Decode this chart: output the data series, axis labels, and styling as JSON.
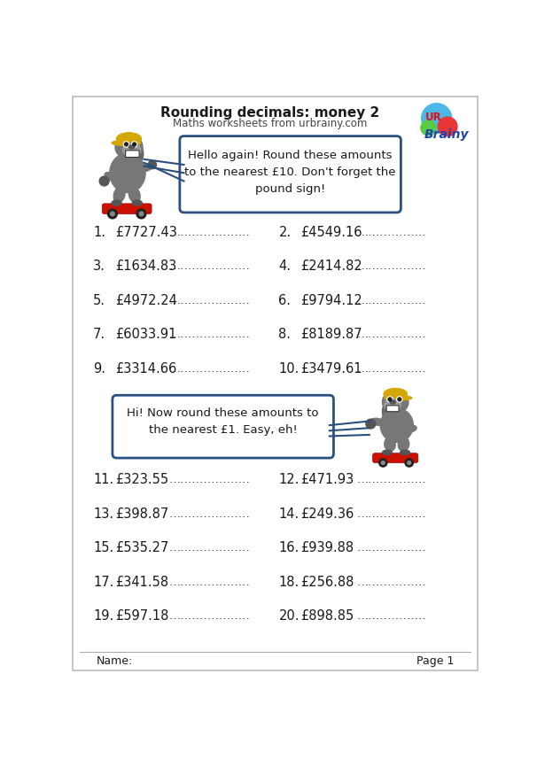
{
  "title": "Rounding decimals: money 2",
  "subtitle": "Maths worksheets from urbrainy.com",
  "background_color": "#ffffff",
  "section1_bubble": "Hello again! Round these amounts\nto the nearest £10. Don't forget the\npound sign!",
  "section2_bubble": "Hi! Now round these amounts to\nthe nearest £1. Easy, eh!",
  "q1_left": [
    {
      "num": "1.",
      "val": "£7727.43"
    },
    {
      "num": "3.",
      "val": "£1634.83"
    },
    {
      "num": "5.",
      "val": "£4972.24"
    },
    {
      "num": "7.",
      "val": "£6033.91"
    },
    {
      "num": "9.",
      "val": "£3314.66"
    }
  ],
  "q1_right": [
    {
      "num": "2.",
      "val": "£4549.16"
    },
    {
      "num": "4.",
      "val": "£2414.82"
    },
    {
      "num": "6.",
      "val": "£9794.12"
    },
    {
      "num": "8.",
      "val": "£8189.87"
    },
    {
      "num": "10.",
      "val": "£3479.61"
    }
  ],
  "q2_left": [
    {
      "num": "11.",
      "val": "£323.55"
    },
    {
      "num": "13.",
      "val": "£398.87"
    },
    {
      "num": "15.",
      "val": "£535.27"
    },
    {
      "num": "17.",
      "val": "£341.58"
    },
    {
      "num": "19.",
      "val": "£597.18"
    }
  ],
  "q2_right": [
    {
      "num": "12.",
      "val": "£471.93"
    },
    {
      "num": "14.",
      "val": "£249.36"
    },
    {
      "num": "16.",
      "val": "£939.88"
    },
    {
      "num": "18.",
      "val": "£256.88"
    },
    {
      "num": "20.",
      "val": "£898.85"
    }
  ],
  "footer_left": "Name:",
  "footer_right": "Page 1",
  "text_color": "#1a1a1a",
  "bubble_border": "#2b4f7e",
  "bubble_fill": "#ffffff",
  "gorilla_body": "#777777",
  "gorilla_face": "#999999",
  "gorilla_dark": "#555555",
  "helmet_color": "#d4a800",
  "board_color": "#cc1100"
}
